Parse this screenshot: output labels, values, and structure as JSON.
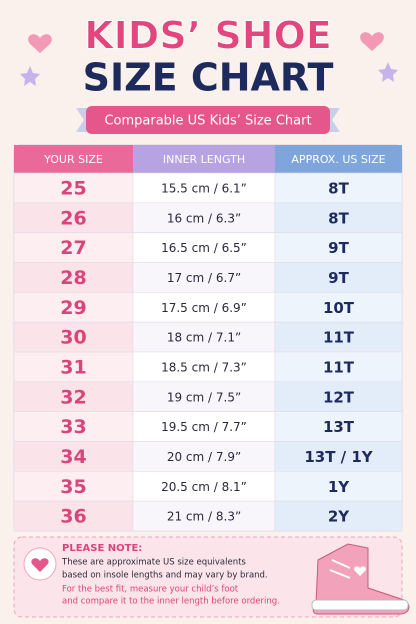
{
  "header": {
    "title_line1": "KIDS’ SHOE",
    "title_line2": "SIZE CHART",
    "subtitle": "Comparable US Kids’ Size Chart"
  },
  "table": {
    "columns": [
      "YOUR SIZE",
      "INNER LENGTH",
      "APPROX. US SIZE"
    ],
    "rows": [
      [
        "25",
        "15.5 cm / 6.1”",
        "8T"
      ],
      [
        "26",
        "16 cm / 6.3”",
        "8T"
      ],
      [
        "27",
        "16.5 cm / 6.5”",
        "9T"
      ],
      [
        "28",
        "17 cm / 6.7”",
        "9T"
      ],
      [
        "29",
        "17.5 cm / 6.9”",
        "10T"
      ],
      [
        "30",
        "18 cm / 7.1”",
        "11T"
      ],
      [
        "31",
        "18.5 cm / 7.3”",
        "11T"
      ],
      [
        "32",
        "19 cm / 7.5”",
        "12T"
      ],
      [
        "33",
        "19.5 cm / 7.7”",
        "13T"
      ],
      [
        "34",
        "20 cm / 7.9”",
        "13T / 1Y"
      ],
      [
        "35",
        "20.5 cm / 8.1”",
        "1Y"
      ],
      [
        "36",
        "21 cm / 8.3”",
        "2Y"
      ]
    ]
  },
  "note": {
    "heading": "PLEASE NOTE:",
    "lines": [
      "These are approximate US size equivalents",
      "based on insole lengths and may vary by brand."
    ],
    "tip_lines": [
      "For the best fit, measure your child’s foot",
      "and compare it to the inner length before ordering."
    ]
  }
}
